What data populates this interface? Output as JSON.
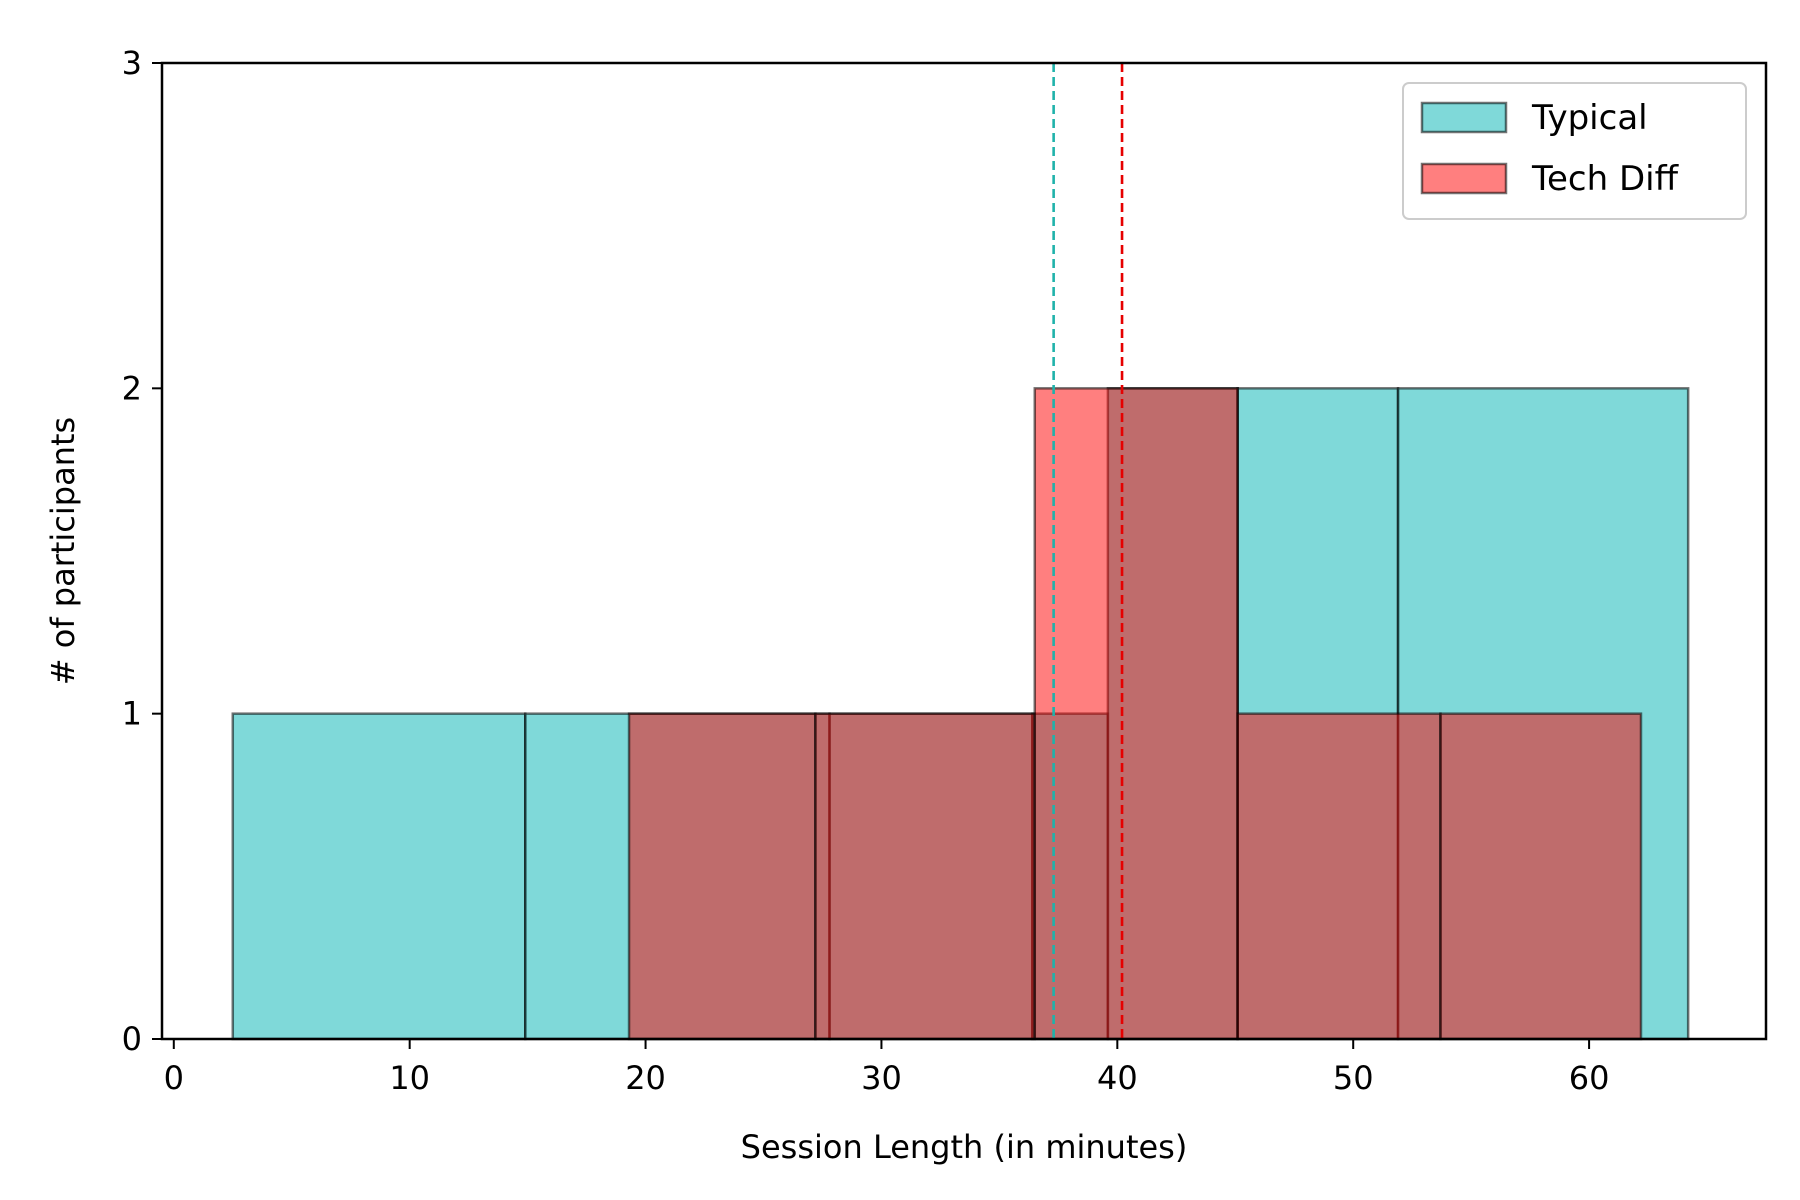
{
  "chart_data": {
    "type": "bar",
    "subtype": "overlapping-histogram",
    "title": "",
    "xlabel": "Session Length (in minutes)",
    "ylabel": "# of participants",
    "xlim": [
      -0.5,
      67.5
    ],
    "ylim": [
      0,
      3
    ],
    "x_ticks": [
      0,
      10,
      20,
      30,
      40,
      50,
      60
    ],
    "y_ticks": [
      0,
      1,
      2,
      3
    ],
    "x_tick_labels": [
      "0",
      "10",
      "20",
      "30",
      "40",
      "50",
      "60"
    ],
    "y_tick_labels": [
      "0",
      "1",
      "2",
      "3"
    ],
    "grid": false,
    "legend_position": "top-right",
    "series": [
      {
        "name": "Typical",
        "color": "#00b3b3",
        "alpha": 0.5,
        "bins": [
          {
            "x0": 2.5,
            "x1": 14.9,
            "count": 1
          },
          {
            "x0": 14.9,
            "x1": 27.8,
            "count": 1
          },
          {
            "x0": 27.8,
            "x1": 36.4,
            "count": 1
          },
          {
            "x0": 36.4,
            "x1": 39.6,
            "count": 1
          },
          {
            "x0": 39.6,
            "x1": 45.1,
            "count": 2
          },
          {
            "x0": 45.1,
            "x1": 51.9,
            "count": 2
          },
          {
            "x0": 51.9,
            "x1": 64.2,
            "count": 2
          }
        ],
        "mean": 37.3,
        "mean_color": "#20b2aa"
      },
      {
        "name": "Tech Diff",
        "color": "#ff0000",
        "alpha": 0.5,
        "bins": [
          {
            "x0": 19.3,
            "x1": 27.2,
            "count": 1
          },
          {
            "x0": 27.2,
            "x1": 36.5,
            "count": 1
          },
          {
            "x0": 36.5,
            "x1": 45.1,
            "count": 2
          },
          {
            "x0": 45.1,
            "x1": 53.7,
            "count": 1
          },
          {
            "x0": 53.7,
            "x1": 62.2,
            "count": 1
          }
        ],
        "mean": 40.2,
        "mean_color": "#e60000"
      }
    ]
  }
}
